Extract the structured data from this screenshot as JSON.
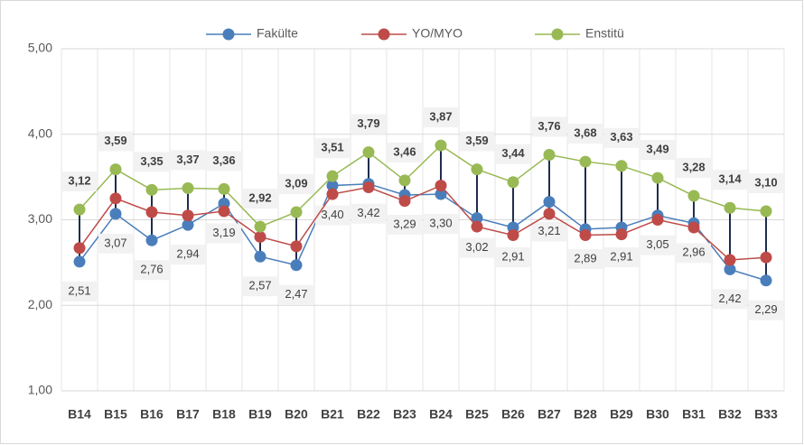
{
  "chart_data": {
    "type": "line",
    "categories": [
      "B14",
      "B15",
      "B16",
      "B17",
      "B18",
      "B19",
      "B20",
      "B21",
      "B22",
      "B23",
      "B24",
      "B25",
      "B26",
      "B27",
      "B28",
      "B29",
      "B30",
      "B31",
      "B32",
      "B33"
    ],
    "series": [
      {
        "name": "Fakülte",
        "color": "#4a7ebb",
        "values": [
          2.51,
          3.07,
          2.76,
          2.94,
          3.19,
          2.57,
          2.47,
          3.4,
          3.42,
          3.29,
          3.3,
          3.02,
          2.91,
          3.21,
          2.89,
          2.91,
          3.05,
          2.96,
          2.42,
          2.29
        ],
        "value_labels": [
          "2,51",
          "3,07",
          "2,76",
          "2,94",
          "3,19",
          "2,57",
          "2,47",
          "3,40",
          "3,42",
          "3,29",
          "3,30",
          "3,02",
          "2,91",
          "3,21",
          "2,89",
          "2,91",
          "3,05",
          "2,96",
          "2,42",
          "2,29"
        ]
      },
      {
        "name": "YO/MYO",
        "color": "#be4b48",
        "values": [
          2.67,
          3.25,
          3.09,
          3.05,
          3.1,
          2.8,
          2.69,
          3.3,
          3.38,
          3.22,
          3.4,
          2.92,
          2.82,
          3.07,
          2.82,
          2.83,
          3.0,
          2.91,
          2.53,
          2.56
        ]
      },
      {
        "name": "Enstitü",
        "color": "#98b954",
        "values": [
          3.12,
          3.59,
          3.35,
          3.37,
          3.36,
          2.92,
          3.09,
          3.51,
          3.79,
          3.46,
          3.87,
          3.59,
          3.44,
          3.76,
          3.68,
          3.63,
          3.49,
          3.28,
          3.14,
          3.1
        ],
        "value_labels": [
          "3,12",
          "3,59",
          "3,35",
          "3,37",
          "3,36",
          "2,92",
          "3,09",
          "3,51",
          "3,79",
          "3,46",
          "3,87",
          "3,59",
          "3,44",
          "3,76",
          "3,68",
          "3,63",
          "3,49",
          "3,28",
          "3,14",
          "3,10"
        ]
      }
    ],
    "ylim": [
      1,
      5
    ],
    "yticks": [
      {
        "value": 1,
        "label": "1,00"
      },
      {
        "value": 2,
        "label": "2,00"
      },
      {
        "value": 3,
        "label": "3,00"
      },
      {
        "value": 4,
        "label": "4,00"
      },
      {
        "value": 5,
        "label": "5,00"
      }
    ],
    "grid": true,
    "legend": "top",
    "high_low_lines": true,
    "high_low_color": "#1f2d4f"
  }
}
